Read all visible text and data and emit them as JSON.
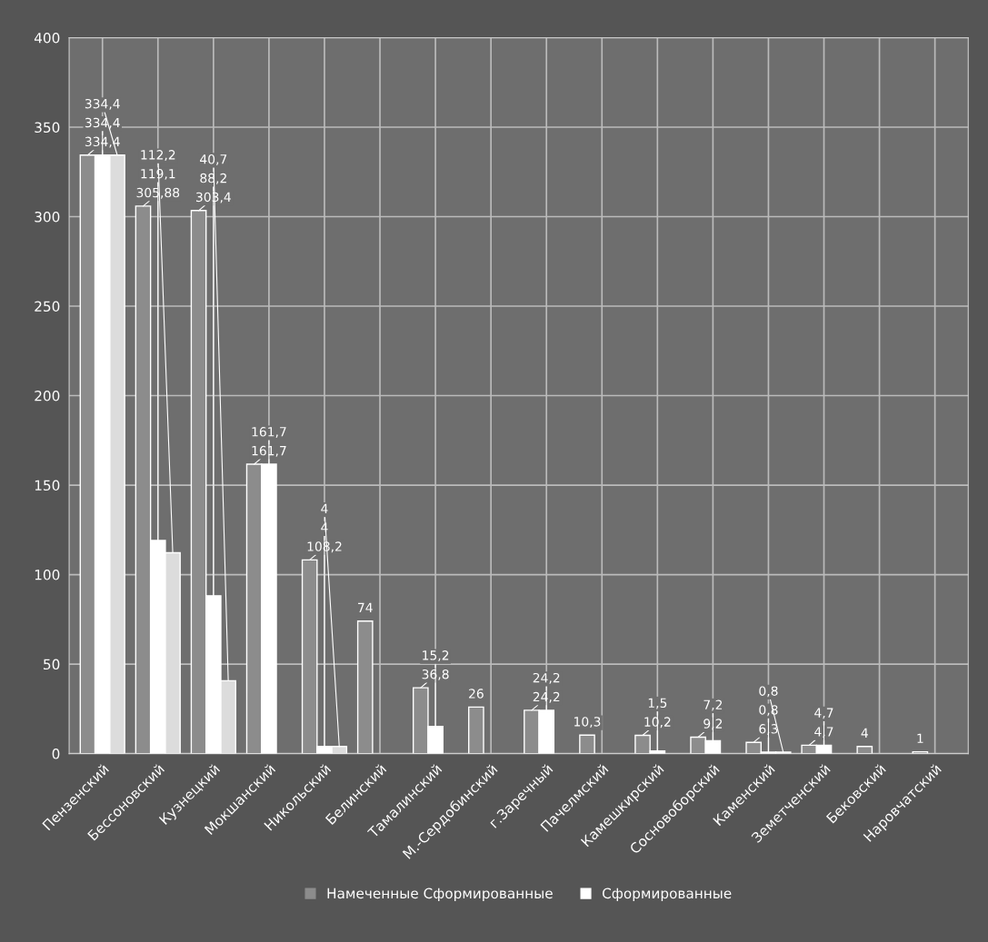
{
  "chart_data": {
    "type": "bar",
    "categories": [
      "Пензенский",
      "Бессоновский",
      "Кузнецкий",
      "Мокшанский",
      "Никольский",
      "Белинский",
      "Тамалинский",
      "М.-Сердобинский",
      "г.Заречный",
      "Пачелмский",
      "Камешкирский",
      "Сосновоборский",
      "Каменский",
      "Земетченский",
      "Бековский",
      "Наровчатский"
    ],
    "series": [
      {
        "name": "Намеченные Сформированные",
        "color": "#8c8c8c",
        "values": [
          334.4,
          305.88,
          303.4,
          161.7,
          108.2,
          74,
          36.8,
          26,
          24.2,
          10.3,
          10.2,
          9.2,
          6.3,
          4.7,
          4,
          1
        ],
        "value_labels": [
          "334,4",
          "305,88",
          "303,4",
          "161,7",
          "108,2",
          "74",
          "36,8",
          "26",
          "24,2",
          "10,3",
          "10,2",
          "9,2",
          "6,3",
          "4,7",
          "4",
          "1"
        ]
      },
      {
        "name": "Сформированные",
        "color": "#ffffff",
        "values": [
          334.4,
          119.1,
          88.2,
          161.7,
          4,
          null,
          15.2,
          null,
          24.2,
          null,
          1.5,
          7.2,
          0.8,
          4.7,
          null,
          null
        ],
        "value_labels": [
          "334,4",
          "119,1",
          "88,2",
          "161,7",
          "4",
          null,
          "15,2",
          null,
          "24,2",
          null,
          "1,5",
          "7,2",
          "0,8",
          "4,7",
          null,
          null
        ]
      },
      {
        "color": "#dcdcdc",
        "values": [
          334.4,
          112.2,
          40.7,
          null,
          4,
          null,
          null,
          null,
          null,
          null,
          null,
          null,
          0.8,
          null,
          null,
          null
        ],
        "value_labels": [
          "334,4",
          "112,2",
          "40,7",
          null,
          "4",
          null,
          null,
          null,
          null,
          null,
          null,
          null,
          "0,8",
          null,
          null,
          null
        ]
      }
    ],
    "ylim": [
      0,
      400
    ],
    "yticks": [
      0,
      50,
      100,
      150,
      200,
      250,
      300,
      350,
      400
    ],
    "grid": true,
    "legend": "bottom"
  }
}
